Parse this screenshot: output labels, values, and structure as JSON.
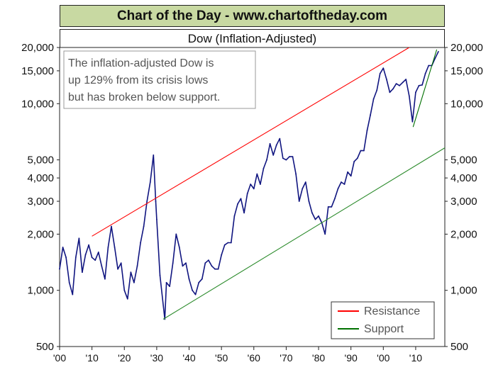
{
  "header": {
    "banner": "Chart of the Day - www.chartoftheday.com"
  },
  "chart_data": {
    "type": "line",
    "title": "Dow (Inflation-Adjusted)",
    "xlabel": "",
    "ylabel": "",
    "y_scale": "log",
    "xlim": [
      1900,
      2019
    ],
    "ylim": [
      500,
      20000
    ],
    "x_tick_labels": [
      "'00",
      "'10",
      "'20",
      "'30",
      "'40",
      "'50",
      "'60",
      "'70",
      "'80",
      "'90",
      "'00",
      "'10"
    ],
    "x_tick_values": [
      1900,
      1910,
      1920,
      1930,
      1940,
      1950,
      1960,
      1970,
      1980,
      1990,
      2000,
      2010
    ],
    "y_ticks": [
      {
        "value": 20000,
        "label": "20,000"
      },
      {
        "value": 15000,
        "label": "15,000"
      },
      {
        "value": 10000,
        "label": "10,000"
      },
      {
        "value": 5000,
        "label": "5,000"
      },
      {
        "value": 4000,
        "label": "4,000"
      },
      {
        "value": 3000,
        "label": "3,000"
      },
      {
        "value": 2000,
        "label": "2,000"
      },
      {
        "value": 1000,
        "label": "1,000"
      },
      {
        "value": 500,
        "label": "500"
      }
    ],
    "annotation": [
      "The inflation-adjusted Dow is",
      "up 129% from its crisis lows",
      "but has broken below support."
    ],
    "legend": {
      "position": "bottom-right",
      "entries": [
        {
          "label": "Resistance",
          "color": "#ff0000"
        },
        {
          "label": "Support",
          "color": "#007000"
        }
      ]
    },
    "grid": false,
    "colors": {
      "dow": "#101580",
      "resistance": "#ff0000",
      "support": "#007000",
      "channel_support": "#2a8a2a"
    },
    "series": [
      {
        "name": "Dow",
        "x": [
          1900,
          1901,
          1902,
          1903,
          1904,
          1905,
          1906,
          1907,
          1908,
          1909,
          1910,
          1911,
          1912,
          1913,
          1914,
          1915,
          1916,
          1917,
          1918,
          1919,
          1920,
          1921,
          1922,
          1923,
          1924,
          1925,
          1926,
          1927,
          1928,
          1929,
          1929.7,
          1930,
          1931,
          1932.5,
          1933,
          1934,
          1935,
          1936,
          1937,
          1938,
          1939,
          1940,
          1941,
          1942,
          1943,
          1944,
          1945,
          1946,
          1947,
          1948,
          1949,
          1950,
          1951,
          1952,
          1953,
          1954,
          1955,
          1956,
          1957,
          1958,
          1959,
          1960,
          1961,
          1962,
          1963,
          1964,
          1965,
          1966,
          1967,
          1968,
          1969,
          1970,
          1971,
          1972,
          1973,
          1974,
          1975,
          1976,
          1977,
          1978,
          1979,
          1980,
          1981,
          1982,
          1983,
          1984,
          1985,
          1986,
          1987,
          1988,
          1989,
          1990,
          1991,
          1992,
          1993,
          1994,
          1995,
          1996,
          1997,
          1998,
          1999,
          2000,
          2001,
          2002,
          2003,
          2004,
          2005,
          2006,
          2007,
          2008,
          2009,
          2010,
          2011,
          2012,
          2013,
          2014,
          2015,
          2016,
          2017
        ],
        "values": [
          1300,
          1700,
          1500,
          1100,
          950,
          1500,
          1900,
          1250,
          1550,
          1750,
          1500,
          1450,
          1600,
          1350,
          1150,
          1700,
          2200,
          1700,
          1300,
          1400,
          1000,
          900,
          1250,
          1100,
          1350,
          1800,
          2200,
          3000,
          3800,
          5300,
          3000,
          2400,
          1200,
          700,
          1100,
          1050,
          1400,
          2000,
          1700,
          1350,
          1400,
          1150,
          1000,
          950,
          1100,
          1150,
          1400,
          1450,
          1350,
          1300,
          1300,
          1550,
          1750,
          1800,
          1800,
          2500,
          2900,
          3100,
          2600,
          3300,
          3700,
          3500,
          4200,
          3700,
          4500,
          5000,
          6100,
          5300,
          6000,
          6500,
          5100,
          5000,
          5200,
          5200,
          4200,
          3000,
          3500,
          3800,
          3000,
          2600,
          2400,
          2500,
          2300,
          2000,
          2800,
          2800,
          3100,
          3500,
          3800,
          3700,
          4300,
          4100,
          4900,
          5100,
          5600,
          5600,
          7200,
          8700,
          10600,
          11800,
          14500,
          15500,
          13500,
          11500,
          12000,
          12800,
          12500,
          13000,
          13500,
          11000,
          8000,
          11500,
          12500,
          12600,
          14500,
          16000,
          16000,
          17500,
          19000
        ]
      },
      {
        "name": "Resistance",
        "x": [
          1910,
          2008
        ],
        "values": [
          1950,
          20000
        ]
      },
      {
        "name": "Support",
        "x": [
          2009.2,
          2016.5
        ],
        "values": [
          7500,
          19500
        ]
      },
      {
        "name": "Support",
        "x": [
          1932,
          2019
        ],
        "values": [
          700,
          5800
        ]
      }
    ]
  }
}
